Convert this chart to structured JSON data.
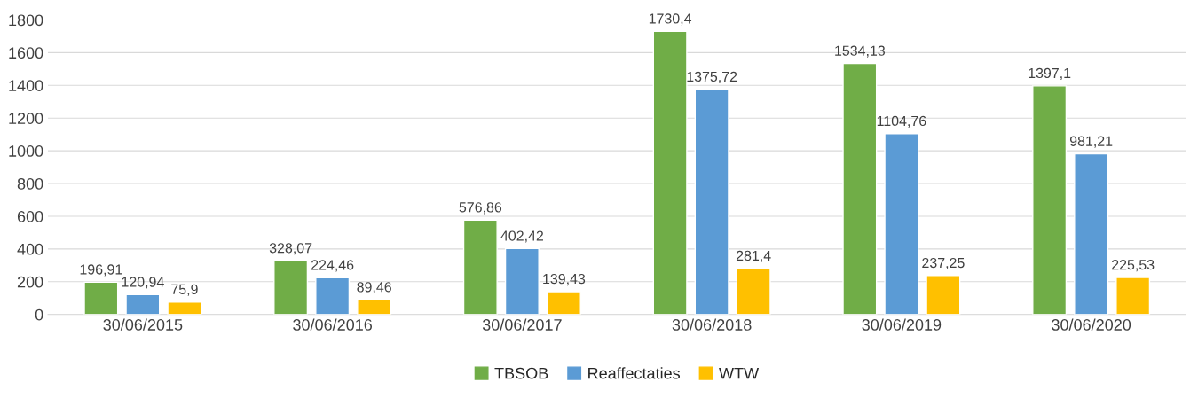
{
  "chart_data": {
    "type": "bar",
    "categories": [
      "30/06/2015",
      "30/06/2016",
      "30/06/2017",
      "30/06/2018",
      "30/06/2019",
      "30/06/2020"
    ],
    "series": [
      {
        "name": "TBSOB",
        "color": "#70ad47",
        "values": [
          196.91,
          328.07,
          576.86,
          1730.4,
          1534.13,
          1397.1
        ],
        "value_labels": [
          "196,91",
          "328,07",
          "576,86",
          "1730,4",
          "1534,13",
          "1397,1"
        ]
      },
      {
        "name": "Reaffectaties",
        "color": "#5b9bd5",
        "values": [
          120.94,
          224.46,
          402.42,
          1375.72,
          1104.76,
          981.21
        ],
        "value_labels": [
          "120,94",
          "224,46",
          "402,42",
          "1375,72",
          "1104,76",
          "981,21"
        ]
      },
      {
        "name": "WTW",
        "color": "#ffc000",
        "values": [
          75.9,
          89.46,
          139.43,
          281.4,
          237.25,
          225.53
        ],
        "value_labels": [
          "75,9",
          "89,46",
          "139,43",
          "281,4",
          "237,25",
          "225,53"
        ]
      }
    ],
    "ylim": [
      0,
      1800
    ],
    "yticks": [
      0,
      200,
      400,
      600,
      800,
      1000,
      1200,
      1400,
      1600,
      1800
    ],
    "grid": "y",
    "legend": "bottom"
  }
}
